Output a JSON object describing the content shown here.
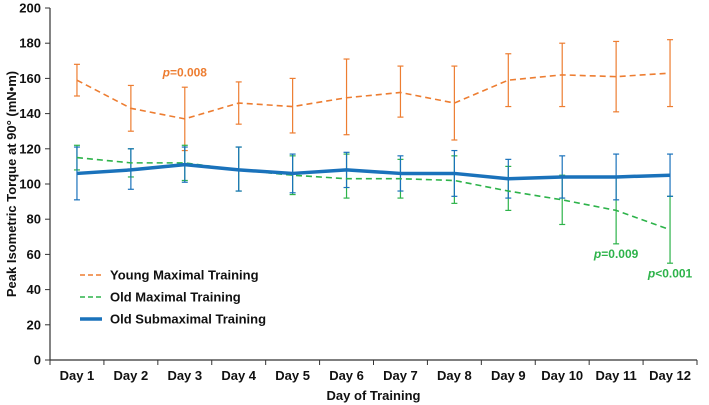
{
  "chart_data": {
    "type": "line",
    "title": "",
    "xlabel": "Day of Training",
    "ylabel": "Peak Isometric Torque at 90° (mN•m)",
    "ylim": [
      0,
      200
    ],
    "yticks": [
      0,
      20,
      40,
      60,
      80,
      100,
      120,
      140,
      160,
      180,
      200
    ],
    "grid": false,
    "categories": [
      "Day 1",
      "Day 2",
      "Day 3",
      "Day 4",
      "Day 5",
      "Day 6",
      "Day 7",
      "Day 8",
      "Day 9",
      "Day 10",
      "Day 11",
      "Day 12"
    ],
    "series": [
      {
        "name": "Young Maximal Training",
        "color": "#ED7D31",
        "line_style": "dashed",
        "values": [
          159,
          143,
          137,
          146,
          144,
          149,
          152,
          146,
          159,
          162,
          161,
          163
        ],
        "err_high": [
          168,
          156,
          155,
          158,
          160,
          171,
          167,
          167,
          174,
          180,
          181,
          182
        ],
        "err_low": [
          150,
          130,
          119,
          134,
          129,
          128,
          138,
          125,
          144,
          144,
          141,
          144
        ]
      },
      {
        "name": "Old Maximal Training",
        "color": "#2DB34A",
        "line_style": "dashed",
        "values": [
          115,
          112,
          112,
          108,
          105,
          103,
          103,
          102,
          96,
          91,
          85,
          74
        ],
        "err_high": [
          122,
          120,
          122,
          121,
          116,
          117,
          114,
          116,
          110,
          105,
          104,
          93
        ],
        "err_low": [
          108,
          104,
          102,
          96,
          94,
          92,
          92,
          89,
          85,
          77,
          66,
          55
        ]
      },
      {
        "name": "Old Submaximal Training",
        "color": "#1A72BB",
        "line_style": "solid",
        "values": [
          106,
          108,
          111,
          108,
          106,
          108,
          106,
          106,
          103,
          104,
          104,
          105
        ],
        "err_high": [
          121,
          120,
          121,
          121,
          117,
          118,
          116,
          119,
          114,
          116,
          117,
          117
        ],
        "err_low": [
          91,
          97,
          101,
          96,
          95,
          98,
          96,
          93,
          92,
          92,
          91,
          93
        ]
      }
    ],
    "legend_position": "bottom-left",
    "annotations": [
      {
        "text": "p=0.008",
        "italic": "p",
        "rest": "=0.008",
        "x": "Day 3",
        "y": 161,
        "color": "#ED7D31"
      },
      {
        "text": "p=0.009",
        "italic": "p",
        "rest": "=0.009",
        "x": "Day 11",
        "y": 58,
        "color": "#2DB34A"
      },
      {
        "text": "p<0.001",
        "italic": "p",
        "rest": "<0.001",
        "x": "Day 12",
        "y": 47,
        "color": "#2DB34A"
      }
    ]
  }
}
